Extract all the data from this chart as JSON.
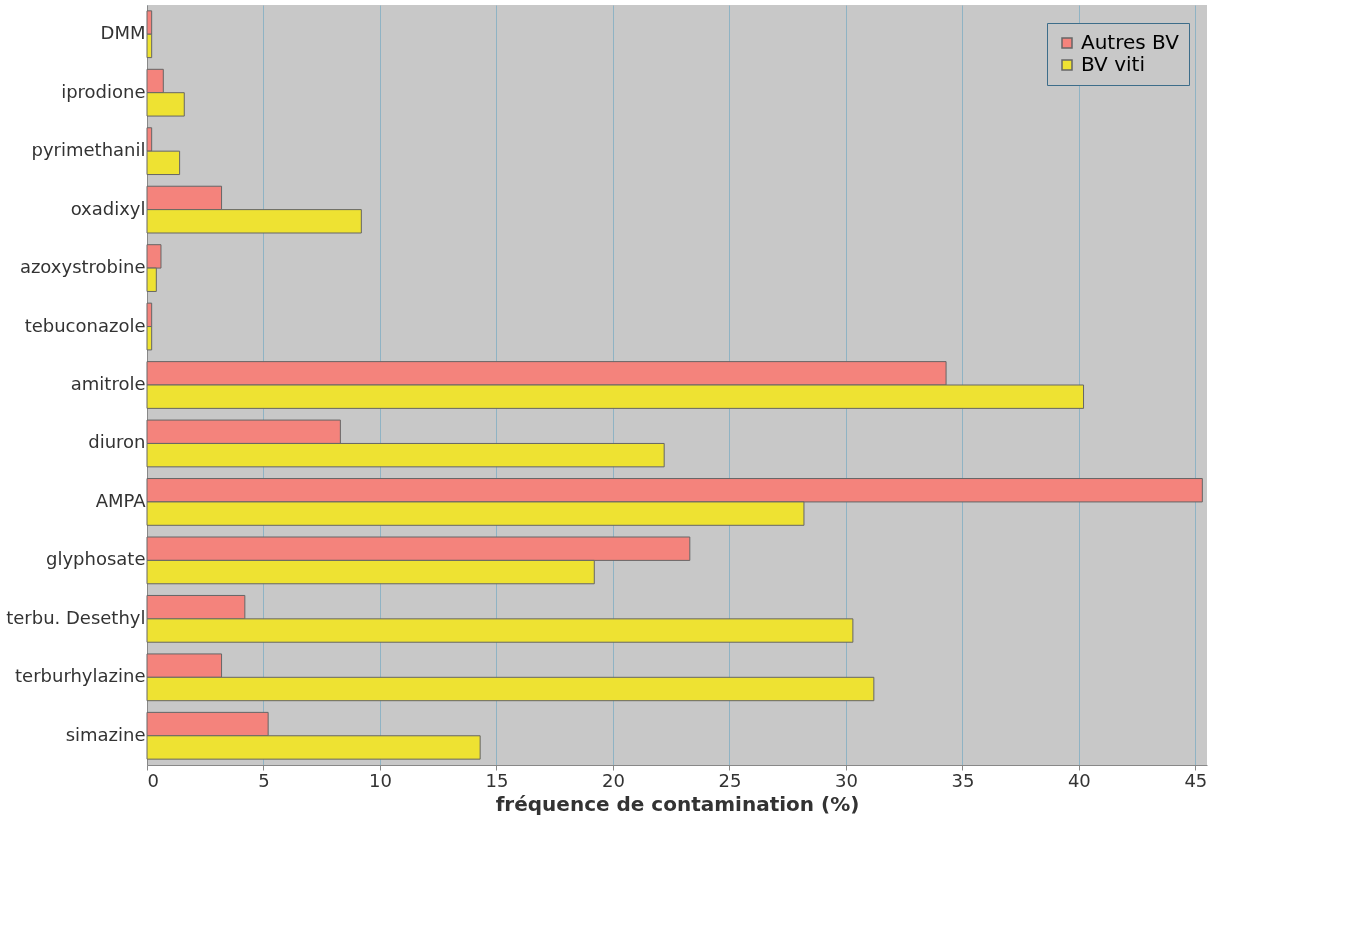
{
  "chart_data": {
    "type": "bar",
    "orientation": "horizontal",
    "xlabel": "fréquence de contamination (%)",
    "categories": [
      "DMM",
      "iprodione",
      "pyrimethanil",
      "oxadixyl",
      "azoxystrobine",
      "tebuconazole",
      "amitrole",
      "diuron",
      "AMPA",
      "glyphosate",
      "terbu. Desethyl",
      "terburhylazine",
      "simazine"
    ],
    "series": [
      {
        "name": "Autres BV",
        "color": "#f4837c",
        "values": [
          0.2,
          0.7,
          0.2,
          3.2,
          0.6,
          0.2,
          34.3,
          8.3,
          45.3,
          23.3,
          4.2,
          3.2,
          5.2
        ]
      },
      {
        "name": "BV viti",
        "color": "#eee232",
        "values": [
          0.2,
          1.6,
          1.4,
          9.2,
          0.4,
          0.2,
          40.2,
          22.2,
          28.2,
          19.2,
          30.3,
          31.2,
          14.3
        ]
      }
    ],
    "xlim": [
      0,
      45.5
    ],
    "xticks": [
      0,
      5,
      10,
      15,
      20,
      25,
      30,
      35,
      40,
      45
    ],
    "grid": "x",
    "legend": "top right"
  }
}
